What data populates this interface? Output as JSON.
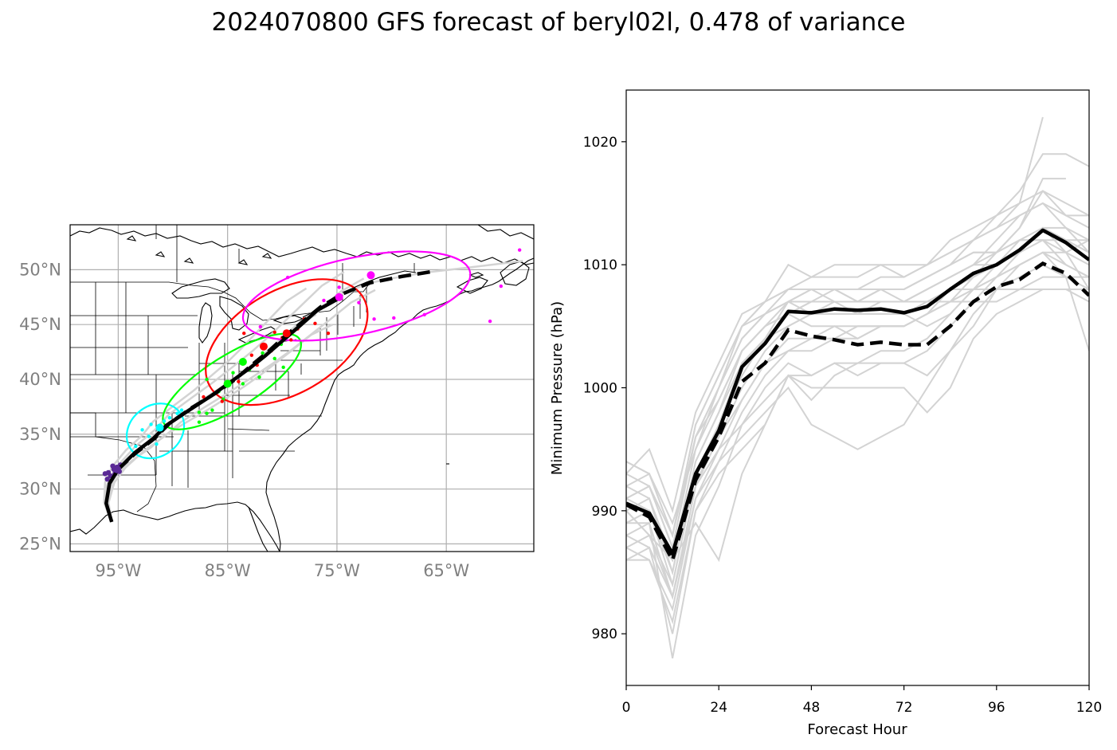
{
  "title": "2024070800 GFS forecast of beryl02l, 0.478 of variance",
  "colors": {
    "ensemble": "#d3d3d3",
    "mean": "#000000",
    "f00": "#5b2a96",
    "f24": "#00ffff",
    "f48": "#00ff00",
    "f72": "#ff0000",
    "f96": "#ff00ff"
  },
  "map": {
    "lon_ticks": [
      "95°W",
      "85°W",
      "75°W",
      "65°W"
    ],
    "lat_ticks": [
      "25°N",
      "30°N",
      "35°N",
      "40°N",
      "45°N",
      "50°N"
    ],
    "extent": {
      "lon": [
        -99.4,
        -57.0
      ],
      "lat": [
        24.3,
        54.1
      ]
    },
    "tracks": {
      "solid_mean": [
        [
          -95.6,
          27.0
        ],
        [
          -96.1,
          28.7
        ],
        [
          -95.8,
          30.5
        ],
        [
          -95.0,
          31.8
        ],
        [
          -93.5,
          33.3
        ],
        [
          -91.8,
          34.6
        ],
        [
          -90.6,
          35.8
        ],
        [
          -88.5,
          37.2
        ],
        [
          -86.5,
          38.5
        ],
        [
          -84.8,
          39.7
        ],
        [
          -83.0,
          41.0
        ],
        [
          -81.5,
          42.2
        ],
        [
          -80.0,
          43.5
        ],
        [
          -78.5,
          44.8
        ],
        [
          -76.8,
          46.3
        ],
        [
          -74.8,
          47.4
        ]
      ],
      "dashed_mean": [
        [
          -95.0,
          31.8
        ],
        [
          -93.5,
          33.2
        ],
        [
          -91.7,
          34.6
        ],
        [
          -90.3,
          36.0
        ],
        [
          -88.3,
          37.4
        ],
        [
          -86.0,
          38.8
        ],
        [
          -84.3,
          40.0
        ],
        [
          -82.8,
          41.3
        ],
        [
          -81.2,
          42.6
        ],
        [
          -79.8,
          43.9
        ],
        [
          -78.2,
          45.2
        ],
        [
          -76.5,
          46.6
        ],
        [
          -74.5,
          47.8
        ],
        [
          -72.0,
          48.8
        ],
        [
          -69.0,
          49.4
        ],
        [
          -66.5,
          49.8
        ]
      ]
    },
    "ellipses": [
      {
        "key": "f24",
        "lon": -91.6,
        "lat": 35.3,
        "rlon": 2.8,
        "rlat": 2.3,
        "angle": 38
      },
      {
        "key": "f48",
        "lon": -84.6,
        "lat": 39.8,
        "rlon": 7.3,
        "rlat": 2.4,
        "angle": 32
      },
      {
        "key": "f72",
        "lon": -79.6,
        "lat": 43.4,
        "rlon": 8.1,
        "rlat": 4.7,
        "angle": 30
      },
      {
        "key": "f96",
        "lon": -73.2,
        "lat": 47.6,
        "rlon": 10.6,
        "rlat": 3.5,
        "angle": 12
      }
    ],
    "members": {
      "f00": [
        [
          -95.9,
          31.5
        ],
        [
          -95.4,
          31.8
        ],
        [
          -95.1,
          32.0
        ],
        [
          -94.9,
          31.6
        ],
        [
          -95.7,
          31.2
        ],
        [
          -96.2,
          31.4
        ],
        [
          -95.3,
          31.4
        ],
        [
          -94.8,
          32.2
        ],
        [
          -96.0,
          30.9
        ],
        [
          -95.5,
          32.1
        ]
      ],
      "f24": [
        [
          -93.4,
          33.9
        ],
        [
          -92.2,
          34.8
        ],
        [
          -91.0,
          35.6
        ],
        [
          -90.3,
          36.5
        ],
        [
          -89.6,
          36.9
        ],
        [
          -92.8,
          35.4
        ],
        [
          -91.5,
          34.1
        ],
        [
          -90.8,
          36.2
        ],
        [
          -92.0,
          35.9
        ],
        [
          -89.2,
          37.2
        ]
      ],
      "f48": [
        [
          -87.6,
          36.1
        ],
        [
          -86.9,
          36.9
        ],
        [
          -86.4,
          37.2
        ],
        [
          -85.8,
          38.9
        ],
        [
          -84.5,
          40.6
        ],
        [
          -83.0,
          40.9
        ],
        [
          -81.8,
          42.4
        ],
        [
          -80.7,
          41.9
        ],
        [
          -80.1,
          43.2
        ],
        [
          -86.9,
          40.0
        ],
        [
          -85.4,
          38.2
        ],
        [
          -83.6,
          39.6
        ],
        [
          -82.1,
          40.2
        ],
        [
          -87.6,
          37.0
        ],
        [
          -79.9,
          41.1
        ]
      ],
      "f72": [
        [
          -87.2,
          38.4
        ],
        [
          -85.5,
          38.0
        ],
        [
          -84.0,
          39.8
        ],
        [
          -82.3,
          41.3
        ],
        [
          -81.0,
          42.6
        ],
        [
          -80.0,
          43.8
        ],
        [
          -78.6,
          44.6
        ],
        [
          -77.0,
          45.1
        ],
        [
          -75.8,
          44.2
        ],
        [
          -78.0,
          45.5
        ],
        [
          -80.7,
          44.3
        ],
        [
          -82.8,
          42.2
        ],
        [
          -83.5,
          44.2
        ],
        [
          -79.2,
          43.6
        ]
      ],
      "f96": [
        [
          -79.5,
          49.3
        ],
        [
          -78.2,
          45.1
        ],
        [
          -76.2,
          47.2
        ],
        [
          -74.8,
          48.4
        ],
        [
          -73.0,
          47.0
        ],
        [
          -71.6,
          45.5
        ],
        [
          -69.8,
          45.6
        ],
        [
          -67.0,
          45.9
        ],
        [
          -61.0,
          45.3
        ],
        [
          -60.0,
          48.5
        ],
        [
          -58.3,
          51.8
        ],
        [
          -82.0,
          44.8
        ]
      ]
    }
  },
  "chart_data": {
    "type": "line",
    "xlabel": "Forecast Hour",
    "ylabel": "Minimum Pressure (hPa)",
    "xticks": [
      0,
      24,
      48,
      72,
      96,
      120
    ],
    "yticks": [
      980,
      990,
      1000,
      1010,
      1020
    ],
    "xlim": [
      0,
      120
    ],
    "ylim": [
      975.8,
      1024.2
    ],
    "x": [
      0,
      6,
      12,
      18,
      24,
      30,
      36,
      42,
      48,
      54,
      60,
      66,
      72,
      78,
      84,
      90,
      96,
      102,
      108,
      114,
      120
    ],
    "series": [
      {
        "style": "mean-solid",
        "values": [
          990.6,
          989.8,
          986.5,
          993.0,
          996.5,
          1001.7,
          1003.6,
          1006.2,
          1006.1,
          1006.4,
          1006.3,
          1006.4,
          1006.1,
          1006.6,
          1008.0,
          1009.3,
          1010.0,
          1011.2,
          1012.8,
          1011.8,
          1010.4
        ]
      },
      {
        "style": "mean-dashed",
        "values": [
          990.5,
          989.5,
          986.0,
          992.5,
          996.0,
          1000.5,
          1002.0,
          1004.7,
          1004.2,
          1003.9,
          1003.5,
          1003.7,
          1003.5,
          1003.5,
          1005.0,
          1007.0,
          1008.2,
          1008.8,
          1010.1,
          1009.3,
          1007.5
        ]
      },
      {
        "style": "member",
        "values": [
          994.0,
          993.0,
          988.0,
          997.0,
          1001.0,
          1005.0,
          1007.0,
          1008.0,
          1008.0,
          1008.0,
          1008.0,
          1009.0,
          1009.0,
          1010.0,
          1011.0,
          1012.0,
          1014.0,
          1016.0,
          1019.0,
          1019.0,
          1018.0
        ]
      },
      {
        "style": "member",
        "values": [
          991.0,
          992.0,
          987.0,
          996.0,
          1000.0,
          1004.0,
          1006.0,
          1007.0,
          1008.0,
          1007.0,
          1007.0,
          1008.0,
          1008.0,
          1009.0,
          1010.0,
          1012.0,
          1013.0,
          1015.0,
          1022.0,
          null,
          null
        ]
      },
      {
        "style": "member",
        "values": [
          993.0,
          995.0,
          990.0,
          998.0,
          1002.0,
          1006.0,
          1007.0,
          1010.0,
          1009.0,
          1010.0,
          1010.0,
          1010.0,
          1009.0,
          1010.0,
          1012.0,
          1013.0,
          1014.0,
          1015.0,
          1016.0,
          1014.0,
          1014.0
        ]
      },
      {
        "style": "member",
        "values": [
          989.0,
          990.0,
          985.0,
          994.0,
          998.0,
          1003.0,
          1005.0,
          1006.0,
          1007.0,
          1007.0,
          1006.0,
          1007.0,
          1007.0,
          1008.0,
          1009.0,
          1010.0,
          1011.0,
          1013.0,
          1017.0,
          1017.0,
          null
        ]
      },
      {
        "style": "member",
        "values": [
          987.0,
          988.0,
          983.0,
          991.0,
          995.0,
          999.0,
          1002.0,
          1004.0,
          1004.0,
          1005.0,
          1004.0,
          1005.0,
          1005.0,
          1006.0,
          1007.0,
          1008.0,
          1010.0,
          1011.0,
          1012.0,
          1011.0,
          1010.0
        ]
      },
      {
        "style": "member",
        "values": [
          986.0,
          987.0,
          980.0,
          990.0,
          994.0,
          998.0,
          1001.0,
          1003.0,
          1003.0,
          1004.0,
          1004.0,
          1005.0,
          1005.0,
          1006.0,
          1008.0,
          1009.0,
          1010.0,
          1012.0,
          1013.0,
          1012.0,
          1011.0
        ]
      },
      {
        "style": "member",
        "values": [
          988.0,
          989.0,
          978.0,
          988.0,
          992.0,
          997.0,
          1000.0,
          1002.0,
          1001.0,
          1002.0,
          1002.0,
          1003.0,
          1003.0,
          1004.0,
          1006.0,
          1008.0,
          1009.0,
          1010.0,
          1011.0,
          1011.0,
          1012.0
        ]
      },
      {
        "style": "member",
        "values": [
          992.0,
          991.0,
          986.0,
          989.0,
          986.0,
          993.0,
          997.0,
          1001.0,
          999.0,
          1001.0,
          1002.0,
          1002.0,
          1002.0,
          1003.0,
          1005.0,
          1007.0,
          1009.0,
          1011.0,
          1013.0,
          1011.0,
          1008.0
        ]
      },
      {
        "style": "member",
        "values": [
          990.0,
          988.0,
          984.0,
          993.0,
          996.0,
          1000.0,
          1003.0,
          1005.0,
          1006.0,
          1006.0,
          1006.0,
          1006.0,
          1006.0,
          1005.0,
          1006.0,
          1008.0,
          1009.0,
          1010.0,
          1011.0,
          1010.0,
          1009.0
        ]
      },
      {
        "style": "member",
        "values": [
          991.0,
          990.0,
          986.0,
          995.0,
          999.0,
          1003.0,
          1005.0,
          1006.0,
          1007.0,
          1007.0,
          1007.0,
          1008.0,
          1007.0,
          1008.0,
          1009.0,
          1010.0,
          1010.0,
          1011.0,
          1013.0,
          1012.0,
          1011.0
        ]
      },
      {
        "style": "member",
        "values": [
          993.0,
          992.0,
          988.0,
          996.0,
          1000.0,
          1005.0,
          1006.0,
          1007.0,
          1008.0,
          1008.0,
          1007.0,
          1008.0,
          1008.0,
          1009.0,
          1010.0,
          1011.0,
          1011.0,
          1012.0,
          1012.0,
          1012.0,
          1012.0
        ]
      },
      {
        "style": "member",
        "values": [
          988.0,
          987.0,
          983.0,
          992.0,
          995.0,
          997.0,
          999.0,
          1001.0,
          1000.0,
          1000.0,
          1000.0,
          1000.0,
          1000.0,
          998.0,
          1000.0,
          1004.0,
          1006.0,
          1007.0,
          1008.0,
          1008.0,
          1007.0
        ]
      },
      {
        "style": "member",
        "values": [
          987.0,
          986.0,
          982.0,
          991.0,
          994.0,
          996.0,
          998.0,
          1000.0,
          997.0,
          996.0,
          995.0,
          996.0,
          997.0,
          1000.0,
          1003.0,
          1005.0,
          1008.0,
          1009.0,
          1010.0,
          1009.0,
          1008.0
        ]
      },
      {
        "style": "member",
        "values": [
          986.0,
          986.0,
          981.0,
          990.0,
          993.0,
          995.0,
          997.0,
          1001.0,
          1001.0,
          1002.0,
          1001.0,
          1002.0,
          1002.0,
          1001.0,
          1003.0,
          1006.0,
          1008.0,
          1010.0,
          1011.0,
          1009.0,
          1003.0
        ]
      },
      {
        "style": "member",
        "values": [
          989.0,
          989.0,
          983.0,
          992.0,
          997.0,
          1001.0,
          1004.0,
          1007.0,
          1007.0,
          1008.0,
          1008.0,
          1008.0,
          1008.0,
          1009.0,
          1010.0,
          1011.0,
          1011.0,
          1012.0,
          1012.0,
          1010.0,
          1009.0
        ]
      },
      {
        "style": "member",
        "values": [
          992.0,
          993.0,
          988.0,
          997.0,
          1001.0,
          1005.0,
          1007.0,
          1008.0,
          1009.0,
          1009.0,
          1009.0,
          1010.0,
          1010.0,
          1010.0,
          1011.0,
          1012.0,
          1013.0,
          1014.0,
          1015.0,
          1013.0,
          1011.0
        ]
      },
      {
        "style": "member",
        "values": [
          990.0,
          991.0,
          985.0,
          994.0,
          998.0,
          1002.0,
          1004.0,
          1006.0,
          1005.0,
          1005.0,
          1005.0,
          1005.0,
          1005.0,
          1006.0,
          1007.0,
          1009.0,
          1011.0,
          1013.0,
          1016.0,
          1015.0,
          1014.0
        ]
      },
      {
        "style": "member",
        "values": [
          991.0,
          992.0,
          987.0,
          996.0,
          999.0,
          1003.0,
          1005.0,
          1007.0,
          1006.0,
          1006.0,
          1006.0,
          1006.0,
          1006.0,
          1007.0,
          1008.0,
          1008.0,
          1008.0,
          1008.0,
          1009.0,
          1009.0,
          1009.0
        ]
      },
      {
        "style": "member",
        "values": [
          989.0,
          990.0,
          984.0,
          993.0,
          997.0,
          1002.0,
          1004.0,
          1005.0,
          1006.0,
          1007.0,
          1007.0,
          1007.0,
          1007.0,
          1008.0,
          1009.0,
          1010.0,
          1012.0,
          1014.0,
          1015.0,
          1014.0,
          1013.0
        ]
      },
      {
        "style": "member",
        "values": [
          994.0,
          993.0,
          989.0,
          995.0,
          1000.0,
          1004.0,
          1006.0,
          1008.0,
          1008.0,
          1008.0,
          1007.0,
          1007.0,
          1007.0,
          1007.0,
          1007.0,
          1007.0,
          1007.0,
          1008.0,
          1008.0,
          1008.0,
          1008.0
        ]
      },
      {
        "style": "member",
        "values": [
          990.0,
          988.0,
          986.0,
          992.0,
          996.0,
          999.0,
          1002.0,
          1003.0,
          1004.0,
          1004.0,
          1005.0,
          1005.0,
          1005.0,
          1006.0,
          1007.0,
          1008.0,
          1010.0,
          1011.0,
          1013.0,
          1013.0,
          1012.0
        ]
      }
    ]
  }
}
